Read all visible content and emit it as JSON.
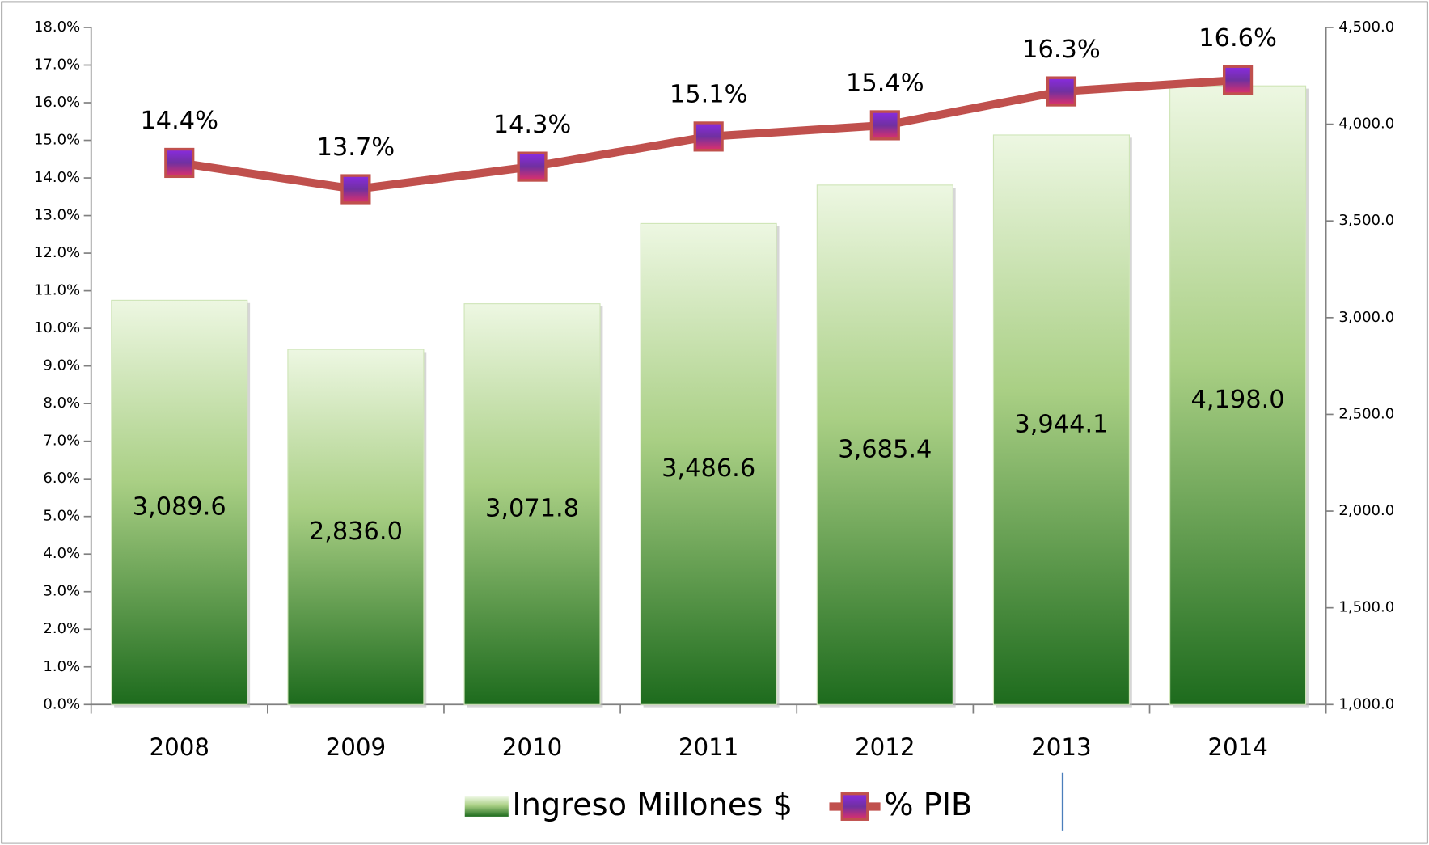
{
  "chart_data": {
    "type": "bar",
    "categories": [
      "2008",
      "2009",
      "2010",
      "2011",
      "2012",
      "2013",
      "2014"
    ],
    "series": [
      {
        "name": "Ingreso Millones $",
        "type": "bar",
        "axis": "y2",
        "color": "#5a9e3c",
        "values": [
          3089.6,
          2836.0,
          3071.8,
          3486.6,
          3685.4,
          3944.1,
          4198.0
        ],
        "value_labels": [
          "3,089.6",
          "2,836.0",
          "3,071.8",
          "3,486.6",
          "3,685.4",
          "3,944.1",
          "4,198.0"
        ]
      },
      {
        "name": "% PIB",
        "type": "line",
        "color": "#c0504d",
        "marker_color": "#7030a0",
        "values": [
          14.4,
          13.7,
          14.3,
          15.1,
          15.4,
          16.3,
          16.6
        ],
        "value_labels": [
          "14.4%",
          "13.7%",
          "14.3%",
          "15.1%",
          "15.4%",
          "16.3%",
          "16.6%"
        ]
      }
    ],
    "ylim": [
      0,
      18
    ],
    "yticks": [
      {
        "value": 0,
        "label": "0.0%"
      },
      {
        "value": 1,
        "label": "1.0%"
      },
      {
        "value": 2,
        "label": "2.0%"
      },
      {
        "value": 3,
        "label": "3.0%"
      },
      {
        "value": 4,
        "label": "4.0%"
      },
      {
        "value": 5,
        "label": "5.0%"
      },
      {
        "value": 6,
        "label": "6.0%"
      },
      {
        "value": 7,
        "label": "7.0%"
      },
      {
        "value": 8,
        "label": "8.0%"
      },
      {
        "value": 9,
        "label": "9.0%"
      },
      {
        "value": 10,
        "label": "10.0%"
      },
      {
        "value": 11,
        "label": "11.0%"
      },
      {
        "value": 12,
        "label": "12.0%"
      },
      {
        "value": 13,
        "label": "13.0%"
      },
      {
        "value": 14,
        "label": "14.0%"
      },
      {
        "value": 15,
        "label": "15.0%"
      },
      {
        "value": 16,
        "label": "16.0%"
      },
      {
        "value": 17,
        "label": "17.0%"
      },
      {
        "value": 18,
        "label": "18.0%"
      }
    ],
    "y2lim": [
      1000,
      4500
    ],
    "y2ticks": [
      {
        "value": 1000,
        "label": "1,000.0"
      },
      {
        "value": 1500,
        "label": "1,500.0"
      },
      {
        "value": 2000,
        "label": "2,000.0"
      },
      {
        "value": 2500,
        "label": "2,500.0"
      },
      {
        "value": 3000,
        "label": "3,000.0"
      },
      {
        "value": 3500,
        "label": "3,500.0"
      },
      {
        "value": 4000,
        "label": "4,000.0"
      },
      {
        "value": 4500,
        "label": "4,500.0"
      }
    ],
    "grid": false,
    "legend": "bottom"
  }
}
